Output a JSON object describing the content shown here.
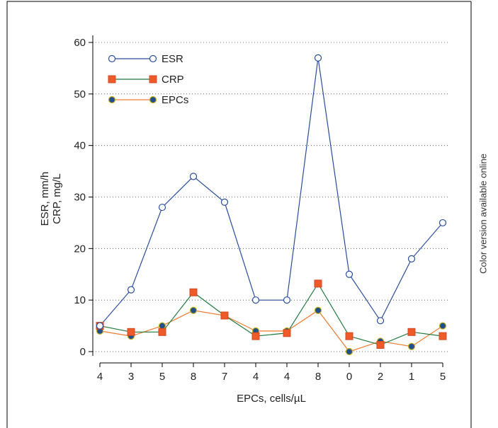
{
  "side_note": "Color version available online",
  "chart_data": {
    "type": "line",
    "xlabel": "EPCs, cells/µL",
    "ylabel": [
      "ESR, mm/h",
      "CRP, mg/L"
    ],
    "categories": [
      "4",
      "3",
      "5",
      "8",
      "7",
      "4",
      "4",
      "8",
      "0",
      "2",
      "1",
      "5"
    ],
    "ylim": [
      0,
      60
    ],
    "yticks": [
      0,
      10,
      20,
      30,
      40,
      50,
      60
    ],
    "grid": "horizontal-dotted",
    "legend_position": "top-left",
    "series": [
      {
        "name": "ESR",
        "marker": "circle-open",
        "line_color": "#2a4d9b",
        "fill": "#ffffff",
        "marker_edge": "#2a4d9b",
        "values": [
          5,
          12,
          28,
          34,
          29,
          10,
          10,
          57,
          15,
          6,
          18,
          25
        ]
      },
      {
        "name": "CRP",
        "marker": "square",
        "line_color": "#1e7a3c",
        "fill": "#ef5a2a",
        "marker_edge": "#d04a22",
        "values": [
          5,
          3.8,
          3.8,
          11.5,
          7,
          3,
          3.6,
          13.2,
          3,
          1.3,
          3.8,
          3
        ]
      },
      {
        "name": "EPCs",
        "marker": "circle-filled",
        "line_color": "#f07a30",
        "fill": "#1f4f8f",
        "marker_edge": "#c9b020",
        "values": [
          4,
          3,
          5,
          8,
          7,
          4,
          4,
          8,
          0,
          2,
          1,
          5
        ]
      }
    ]
  }
}
